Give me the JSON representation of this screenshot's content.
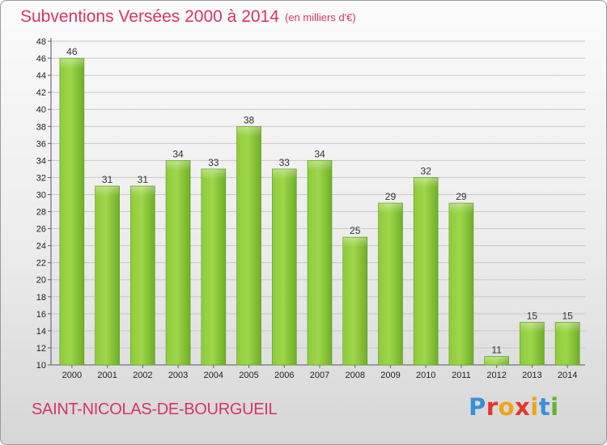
{
  "chart_data": {
    "type": "bar",
    "title": "Subventions Versées 2000 à 2014",
    "subtitle": "(en milliers d'€)",
    "categories": [
      "2000",
      "2001",
      "2002",
      "2003",
      "2004",
      "2005",
      "2006",
      "2007",
      "2008",
      "2009",
      "2010",
      "2011",
      "2012",
      "2013",
      "2014"
    ],
    "values": [
      46,
      31,
      31,
      34,
      33,
      38,
      33,
      34,
      25,
      29,
      32,
      29,
      11,
      15,
      15
    ],
    "ylim": [
      10,
      48
    ],
    "yticks": [
      10,
      12,
      14,
      16,
      18,
      20,
      22,
      24,
      26,
      28,
      30,
      32,
      34,
      36,
      38,
      40,
      42,
      44,
      46,
      48
    ],
    "grid": true,
    "bar_color": "#7cbc2e",
    "xlabel": "",
    "ylabel": ""
  },
  "footer": {
    "commune": "SAINT-NICOLAS-DE-BOURGUEIL",
    "logo": "Proxiti"
  },
  "colors": {
    "title": "#d6336c",
    "bar_light": "#a6dd55",
    "bar_dark": "#5f9a1c",
    "logo_letters": [
      "#3a8fd9",
      "#e3352b",
      "#f0a21a",
      "#e3352b",
      "#f0a21a",
      "#3a8fd9",
      "#5fb52e"
    ]
  }
}
